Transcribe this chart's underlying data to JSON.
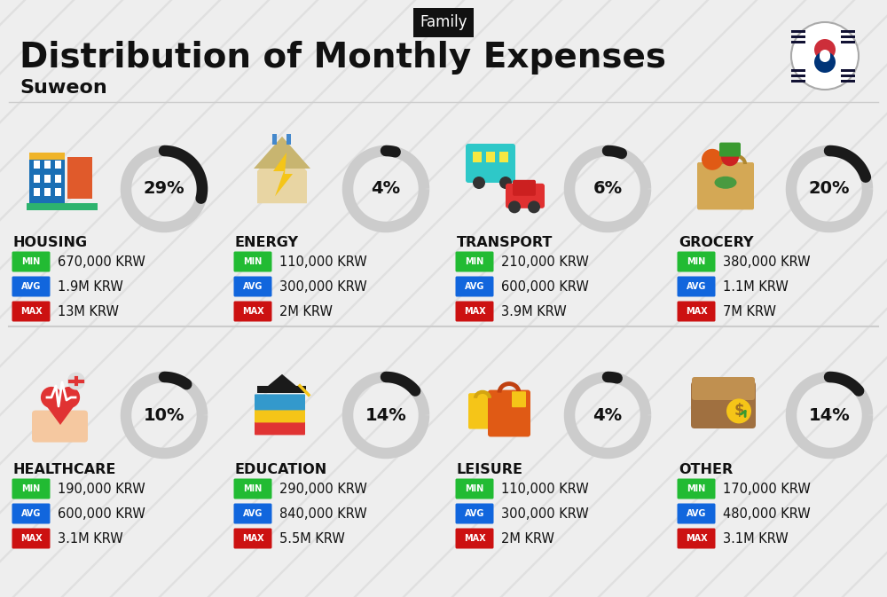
{
  "title": "Distribution of Monthly Expenses",
  "subtitle": "Suweon",
  "tag": "Family",
  "bg_color": "#eeeeee",
  "categories": [
    {
      "name": "HOUSING",
      "pct": 29,
      "min": "670,000 KRW",
      "avg": "1.9M KRW",
      "max": "13M KRW",
      "col": 0,
      "row": 0
    },
    {
      "name": "ENERGY",
      "pct": 4,
      "min": "110,000 KRW",
      "avg": "300,000 KRW",
      "max": "2M KRW",
      "col": 1,
      "row": 0
    },
    {
      "name": "TRANSPORT",
      "pct": 6,
      "min": "210,000 KRW",
      "avg": "600,000 KRW",
      "max": "3.9M KRW",
      "col": 2,
      "row": 0
    },
    {
      "name": "GROCERY",
      "pct": 20,
      "min": "380,000 KRW",
      "avg": "1.1M KRW",
      "max": "7M KRW",
      "col": 3,
      "row": 0
    },
    {
      "name": "HEALTHCARE",
      "pct": 10,
      "min": "190,000 KRW",
      "avg": "600,000 KRW",
      "max": "3.1M KRW",
      "col": 0,
      "row": 1
    },
    {
      "name": "EDUCATION",
      "pct": 14,
      "min": "290,000 KRW",
      "avg": "840,000 KRW",
      "max": "5.5M KRW",
      "col": 1,
      "row": 1
    },
    {
      "name": "LEISURE",
      "pct": 4,
      "min": "110,000 KRW",
      "avg": "300,000 KRW",
      "max": "2M KRW",
      "col": 2,
      "row": 1
    },
    {
      "name": "OTHER",
      "pct": 14,
      "min": "170,000 KRW",
      "avg": "480,000 KRW",
      "max": "3.1M KRW",
      "col": 3,
      "row": 1
    }
  ],
  "min_color": "#22bb33",
  "avg_color": "#1166dd",
  "max_color": "#cc1111",
  "label_color": "#ffffff",
  "text_color": "#111111",
  "donut_filled_color": "#1a1a1a",
  "donut_empty_color": "#cccccc",
  "tag_bg": "#111111",
  "tag_fg": "#ffffff",
  "stripe_color": "#d0d0d0",
  "separator_color": "#cccccc"
}
